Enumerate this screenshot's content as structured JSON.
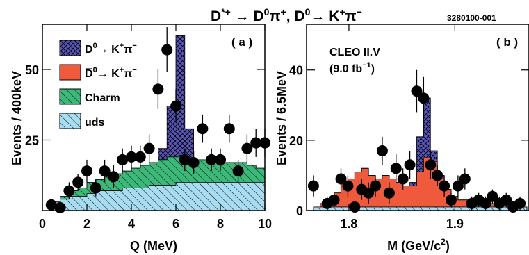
{
  "header": {
    "title_main": "D",
    "title_sup1": "*+",
    "title_arrow": "→",
    "title_part2": "D",
    "title_sup2": "0",
    "title_part3": "π",
    "title_sup3": "+",
    "title_part4": ",  D",
    "title_sup4": "0",
    "title_part5": "→ K",
    "title_sup5": "+",
    "title_part6": "π",
    "title_sup6": "−",
    "figure_id": "3280100-001"
  },
  "colors": {
    "signal": "#5a55b8",
    "dcs": "#f05a3c",
    "charm": "#3cb878",
    "uds": "#a8dcf0",
    "data": "#000000"
  },
  "chart_data": [
    {
      "type": "bar",
      "panel_label": "( a )",
      "xlabel": "Q (MeV)",
      "ylabel": "Events / 400keV",
      "xlim": [
        0,
        10
      ],
      "ylim": [
        0,
        66
      ],
      "xticks": [
        0,
        2,
        4,
        6,
        8,
        10
      ],
      "yticks": [
        25,
        50
      ],
      "bin_edges": [
        0.4,
        0.8,
        1.2,
        1.6,
        2.0,
        2.4,
        2.8,
        3.2,
        3.6,
        4.0,
        4.4,
        4.8,
        5.2,
        5.6,
        6.0,
        6.4,
        6.8,
        7.2,
        7.6,
        8.0,
        8.4,
        8.8,
        9.2,
        9.6,
        10.0
      ],
      "legend": [
        {
          "label_main": "D",
          "label_sup": "0",
          "label_rest": "→ K",
          "label_sup2": "+",
          "label_end": "π",
          "label_sup3": "−",
          "color_key": "signal",
          "hatch": "cross"
        },
        {
          "label_main": "D̅",
          "label_sup": "0",
          "label_rest": "→ K",
          "label_sup2": "+",
          "label_end": "π",
          "label_sup3": "−",
          "color_key": "dcs",
          "hatch": "none"
        },
        {
          "label_main": "Charm",
          "label_sup": "",
          "label_rest": "",
          "label_sup2": "",
          "label_end": "",
          "label_sup3": "",
          "color_key": "charm",
          "hatch": "diag"
        },
        {
          "label_main": "uds",
          "label_sup": "",
          "label_rest": "",
          "label_sup2": "",
          "label_end": "",
          "label_sup3": "",
          "color_key": "uds",
          "hatch": "diag"
        }
      ],
      "stack_tops": {
        "dcs": [
          2,
          3,
          4,
          4,
          5,
          5,
          5,
          5,
          6,
          6,
          6,
          6,
          7,
          7,
          7,
          7,
          7,
          7,
          7,
          7,
          7,
          7,
          7,
          7
        ],
        "uds": [
          3,
          4,
          5,
          5,
          6,
          7,
          7,
          7,
          8,
          8,
          8,
          9,
          9,
          9,
          10,
          10,
          10,
          10,
          10,
          10,
          10,
          10,
          10,
          10
        ],
        "charm": [
          3,
          5,
          7,
          8,
          10,
          11,
          12,
          13,
          14,
          15,
          16,
          17,
          18,
          19,
          19,
          18,
          18,
          18,
          17,
          17,
          17,
          17,
          16,
          15
        ],
        "signal": [
          3,
          5,
          7,
          8,
          10,
          11,
          12,
          13,
          14,
          15,
          16,
          17,
          22,
          37,
          62,
          29,
          18,
          18,
          17,
          17,
          17,
          17,
          16,
          15
        ]
      },
      "points": [
        {
          "x": 0.4,
          "y": 2,
          "err": 1.5
        },
        {
          "x": 0.8,
          "y": 1,
          "err": 1
        },
        {
          "x": 1.2,
          "y": 7,
          "err": 3
        },
        {
          "x": 1.6,
          "y": 10,
          "err": 3
        },
        {
          "x": 2.0,
          "y": 14,
          "err": 4
        },
        {
          "x": 2.4,
          "y": 8,
          "err": 3
        },
        {
          "x": 2.8,
          "y": 14,
          "err": 4
        },
        {
          "x": 3.2,
          "y": 12,
          "err": 4
        },
        {
          "x": 3.6,
          "y": 18,
          "err": 4
        },
        {
          "x": 4.0,
          "y": 19,
          "err": 4
        },
        {
          "x": 4.4,
          "y": 19,
          "err": 4
        },
        {
          "x": 4.8,
          "y": 22,
          "err": 5
        },
        {
          "x": 5.2,
          "y": 43,
          "err": 7
        },
        {
          "x": 5.6,
          "y": 57,
          "err": 8
        },
        {
          "x": 6.0,
          "y": 37,
          "err": 6
        },
        {
          "x": 6.4,
          "y": 18,
          "err": 4
        },
        {
          "x": 6.8,
          "y": 17,
          "err": 4
        },
        {
          "x": 7.2,
          "y": 29,
          "err": 5
        },
        {
          "x": 7.6,
          "y": 18,
          "err": 4
        },
        {
          "x": 8.0,
          "y": 18,
          "err": 4
        },
        {
          "x": 8.4,
          "y": 29,
          "err": 5
        },
        {
          "x": 8.8,
          "y": 14,
          "err": 4
        },
        {
          "x": 9.2,
          "y": 22,
          "err": 5
        },
        {
          "x": 9.6,
          "y": 24,
          "err": 5
        },
        {
          "x": 10.0,
          "y": 24,
          "err": 5
        }
      ]
    },
    {
      "type": "bar",
      "panel_label": "( b )",
      "annotation_line1": "CLEO II.V",
      "annotation_line2_main": "(9.0 fb",
      "annotation_line2_sup": "−1",
      "annotation_line2_end": ")",
      "xlabel_main": "M (GeV/c",
      "xlabel_sup": "2",
      "xlabel_end": ")",
      "ylabel": "Events / 6.5MeV",
      "xlim": [
        1.76,
        1.97
      ],
      "ylim": [
        0,
        53
      ],
      "xticks": [
        1.8,
        1.9
      ],
      "xtick_labels": [
        "1.8",
        "1.9"
      ],
      "yticks": [
        0,
        20,
        40
      ],
      "bin_edges": [
        1.7665,
        1.773,
        1.7795,
        1.786,
        1.7925,
        1.799,
        1.8055,
        1.812,
        1.8185,
        1.825,
        1.8315,
        1.838,
        1.8445,
        1.851,
        1.8575,
        1.864,
        1.8705,
        1.877,
        1.8835,
        1.89,
        1.8965,
        1.903,
        1.9095,
        1.916,
        1.9225,
        1.929,
        1.9355,
        1.942,
        1.9485,
        1.955,
        1.9615,
        1.968
      ],
      "stack_tops": {
        "uds": [
          1,
          1,
          1,
          1,
          1,
          1,
          1,
          1,
          1,
          1,
          1,
          1,
          1,
          1,
          1,
          1,
          1,
          1,
          1,
          1,
          1,
          1,
          1,
          1,
          1,
          1,
          1,
          1,
          1,
          1,
          1
        ],
        "charm": [
          1,
          2,
          3,
          5,
          8,
          9,
          11,
          12,
          10,
          9,
          10,
          9,
          8,
          7,
          7,
          8,
          9,
          11,
          9,
          6,
          4,
          3,
          3,
          2,
          2,
          2,
          2,
          1,
          1,
          1,
          1
        ],
        "dcs": [
          1,
          2,
          3,
          5,
          8,
          9,
          11,
          12,
          10,
          9,
          10,
          9,
          8,
          7,
          7,
          11,
          15,
          14,
          9,
          6,
          4,
          3,
          3,
          2,
          2,
          2,
          2,
          1,
          1,
          1,
          1
        ],
        "signal": [
          1,
          2,
          3,
          5,
          8,
          9,
          11,
          12,
          10,
          9,
          10,
          9,
          8,
          7,
          8,
          21,
          32,
          17,
          10,
          6,
          4,
          3,
          3,
          2,
          2,
          2,
          2,
          1,
          1,
          1,
          1
        ]
      },
      "points": [
        {
          "x": 1.7665,
          "y": 7,
          "err": 3
        },
        {
          "x": 1.7795,
          "y": 2,
          "err": 2
        },
        {
          "x": 1.786,
          "y": 3,
          "err": 2
        },
        {
          "x": 1.7925,
          "y": 9,
          "err": 3
        },
        {
          "x": 1.799,
          "y": 7,
          "err": 3
        },
        {
          "x": 1.8055,
          "y": 1,
          "err": 1
        },
        {
          "x": 1.812,
          "y": 6,
          "err": 3
        },
        {
          "x": 1.8185,
          "y": 5,
          "err": 3
        },
        {
          "x": 1.825,
          "y": 7,
          "err": 3
        },
        {
          "x": 1.8315,
          "y": 17,
          "err": 4
        },
        {
          "x": 1.838,
          "y": 5,
          "err": 3
        },
        {
          "x": 1.8445,
          "y": 12,
          "err": 4
        },
        {
          "x": 1.851,
          "y": 9,
          "err": 3
        },
        {
          "x": 1.8575,
          "y": 13,
          "err": 4
        },
        {
          "x": 1.864,
          "y": 34,
          "err": 6
        },
        {
          "x": 1.8705,
          "y": 32,
          "err": 6
        },
        {
          "x": 1.877,
          "y": 13,
          "err": 4
        },
        {
          "x": 1.8835,
          "y": 10,
          "err": 3
        },
        {
          "x": 1.89,
          "y": 7,
          "err": 3
        },
        {
          "x": 1.8965,
          "y": 3,
          "err": 2
        },
        {
          "x": 1.903,
          "y": 7,
          "err": 3
        },
        {
          "x": 1.9095,
          "y": 9,
          "err": 3
        },
        {
          "x": 1.916,
          "y": 2,
          "err": 2
        },
        {
          "x": 1.9225,
          "y": 3,
          "err": 2
        },
        {
          "x": 1.929,
          "y": 2,
          "err": 2
        },
        {
          "x": 1.9355,
          "y": 4,
          "err": 2
        },
        {
          "x": 1.942,
          "y": 2,
          "err": 2
        },
        {
          "x": 1.9485,
          "y": 3,
          "err": 2
        },
        {
          "x": 1.955,
          "y": 1,
          "err": 1
        },
        {
          "x": 1.9615,
          "y": 2,
          "err": 2
        }
      ]
    }
  ]
}
